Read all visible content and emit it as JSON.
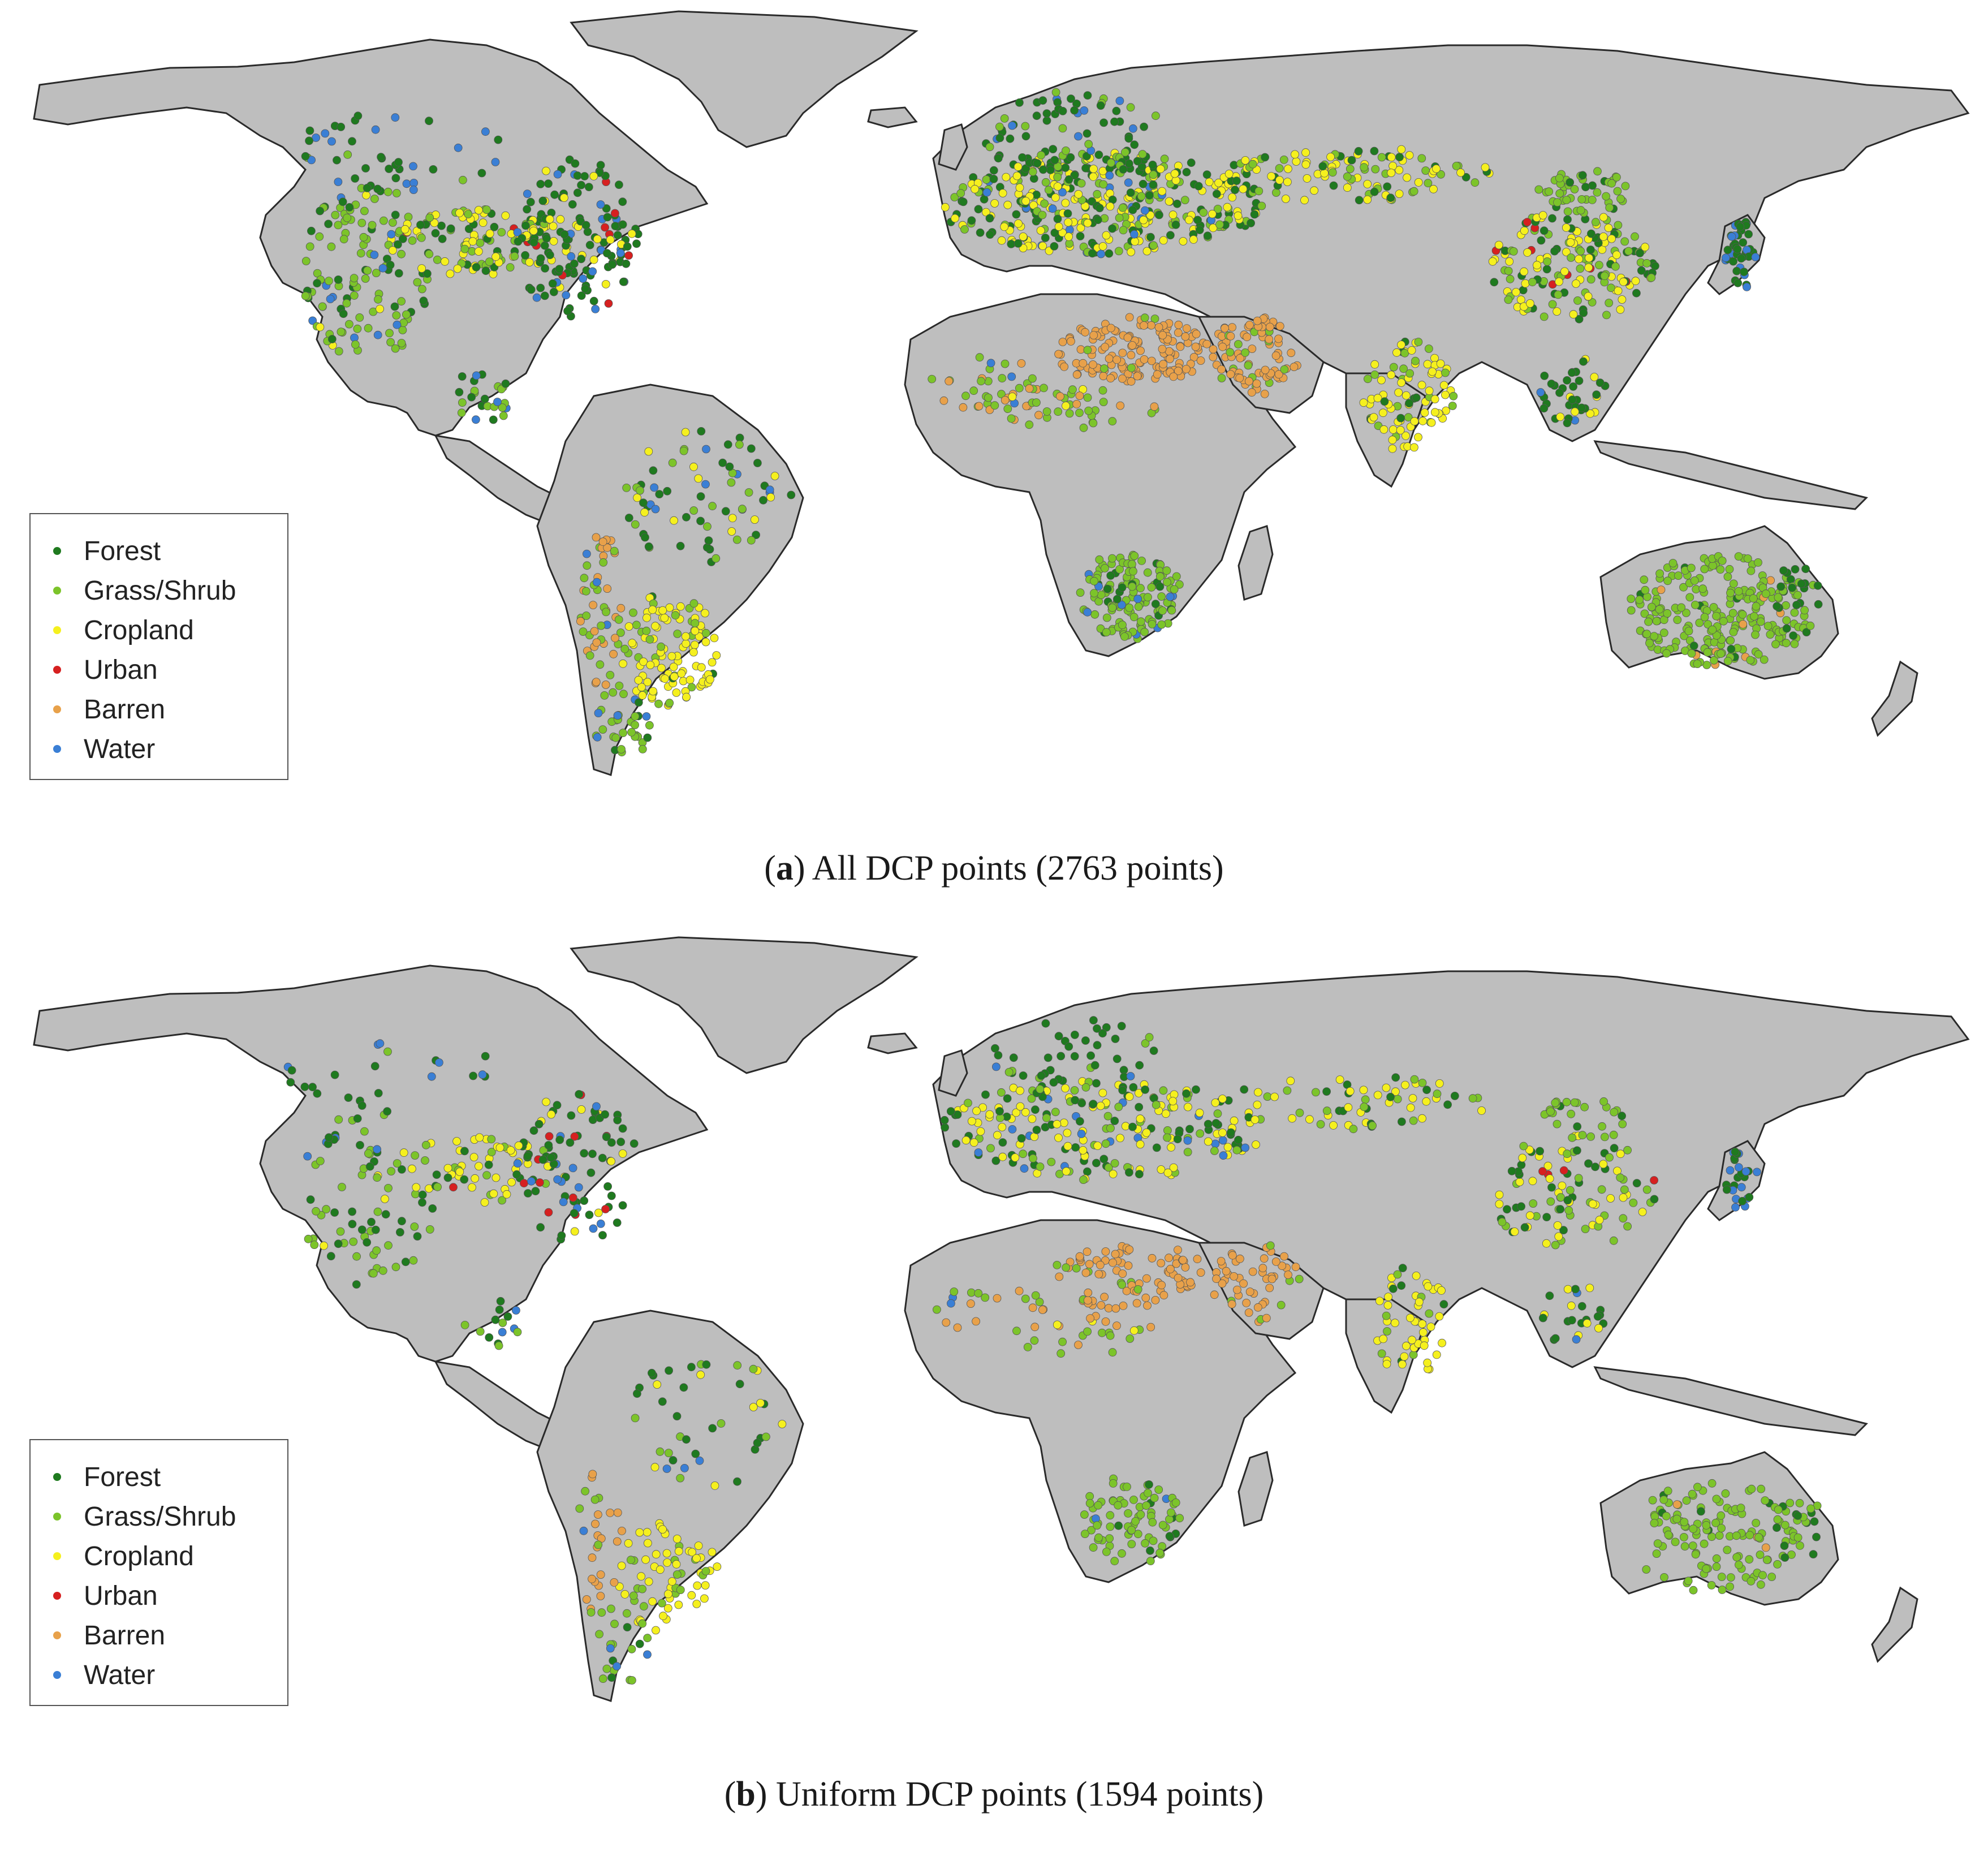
{
  "figure": {
    "panels": [
      {
        "id": "a",
        "letter": "a",
        "caption_text": "All DCP points (2763 points)",
        "legend": [
          {
            "label": "Forest",
            "color": "#1f7a1f"
          },
          {
            "label": "Grass/Shrub",
            "color": "#7cc42a"
          },
          {
            "label": "Cropland",
            "color": "#f5f01e"
          },
          {
            "label": "Urban",
            "color": "#d62020"
          },
          {
            "label": "Barren",
            "color": "#e8a14a"
          },
          {
            "label": "Water",
            "color": "#3a7fd5"
          }
        ]
      },
      {
        "id": "b",
        "letter": "b",
        "caption_text": "Uniform DCP points (1594 points)",
        "legend": [
          {
            "label": "Forest",
            "color": "#1f7a1f"
          },
          {
            "label": "Grass/Shrub",
            "color": "#7cc42a"
          },
          {
            "label": "Cropland",
            "color": "#f5f01e"
          },
          {
            "label": "Urban",
            "color": "#d62020"
          },
          {
            "label": "Barren",
            "color": "#e8a14a"
          },
          {
            "label": "Water",
            "color": "#3a7fd5"
          }
        ]
      }
    ],
    "land_color": "#bebebe",
    "border_color": "#2a2a2a"
  }
}
